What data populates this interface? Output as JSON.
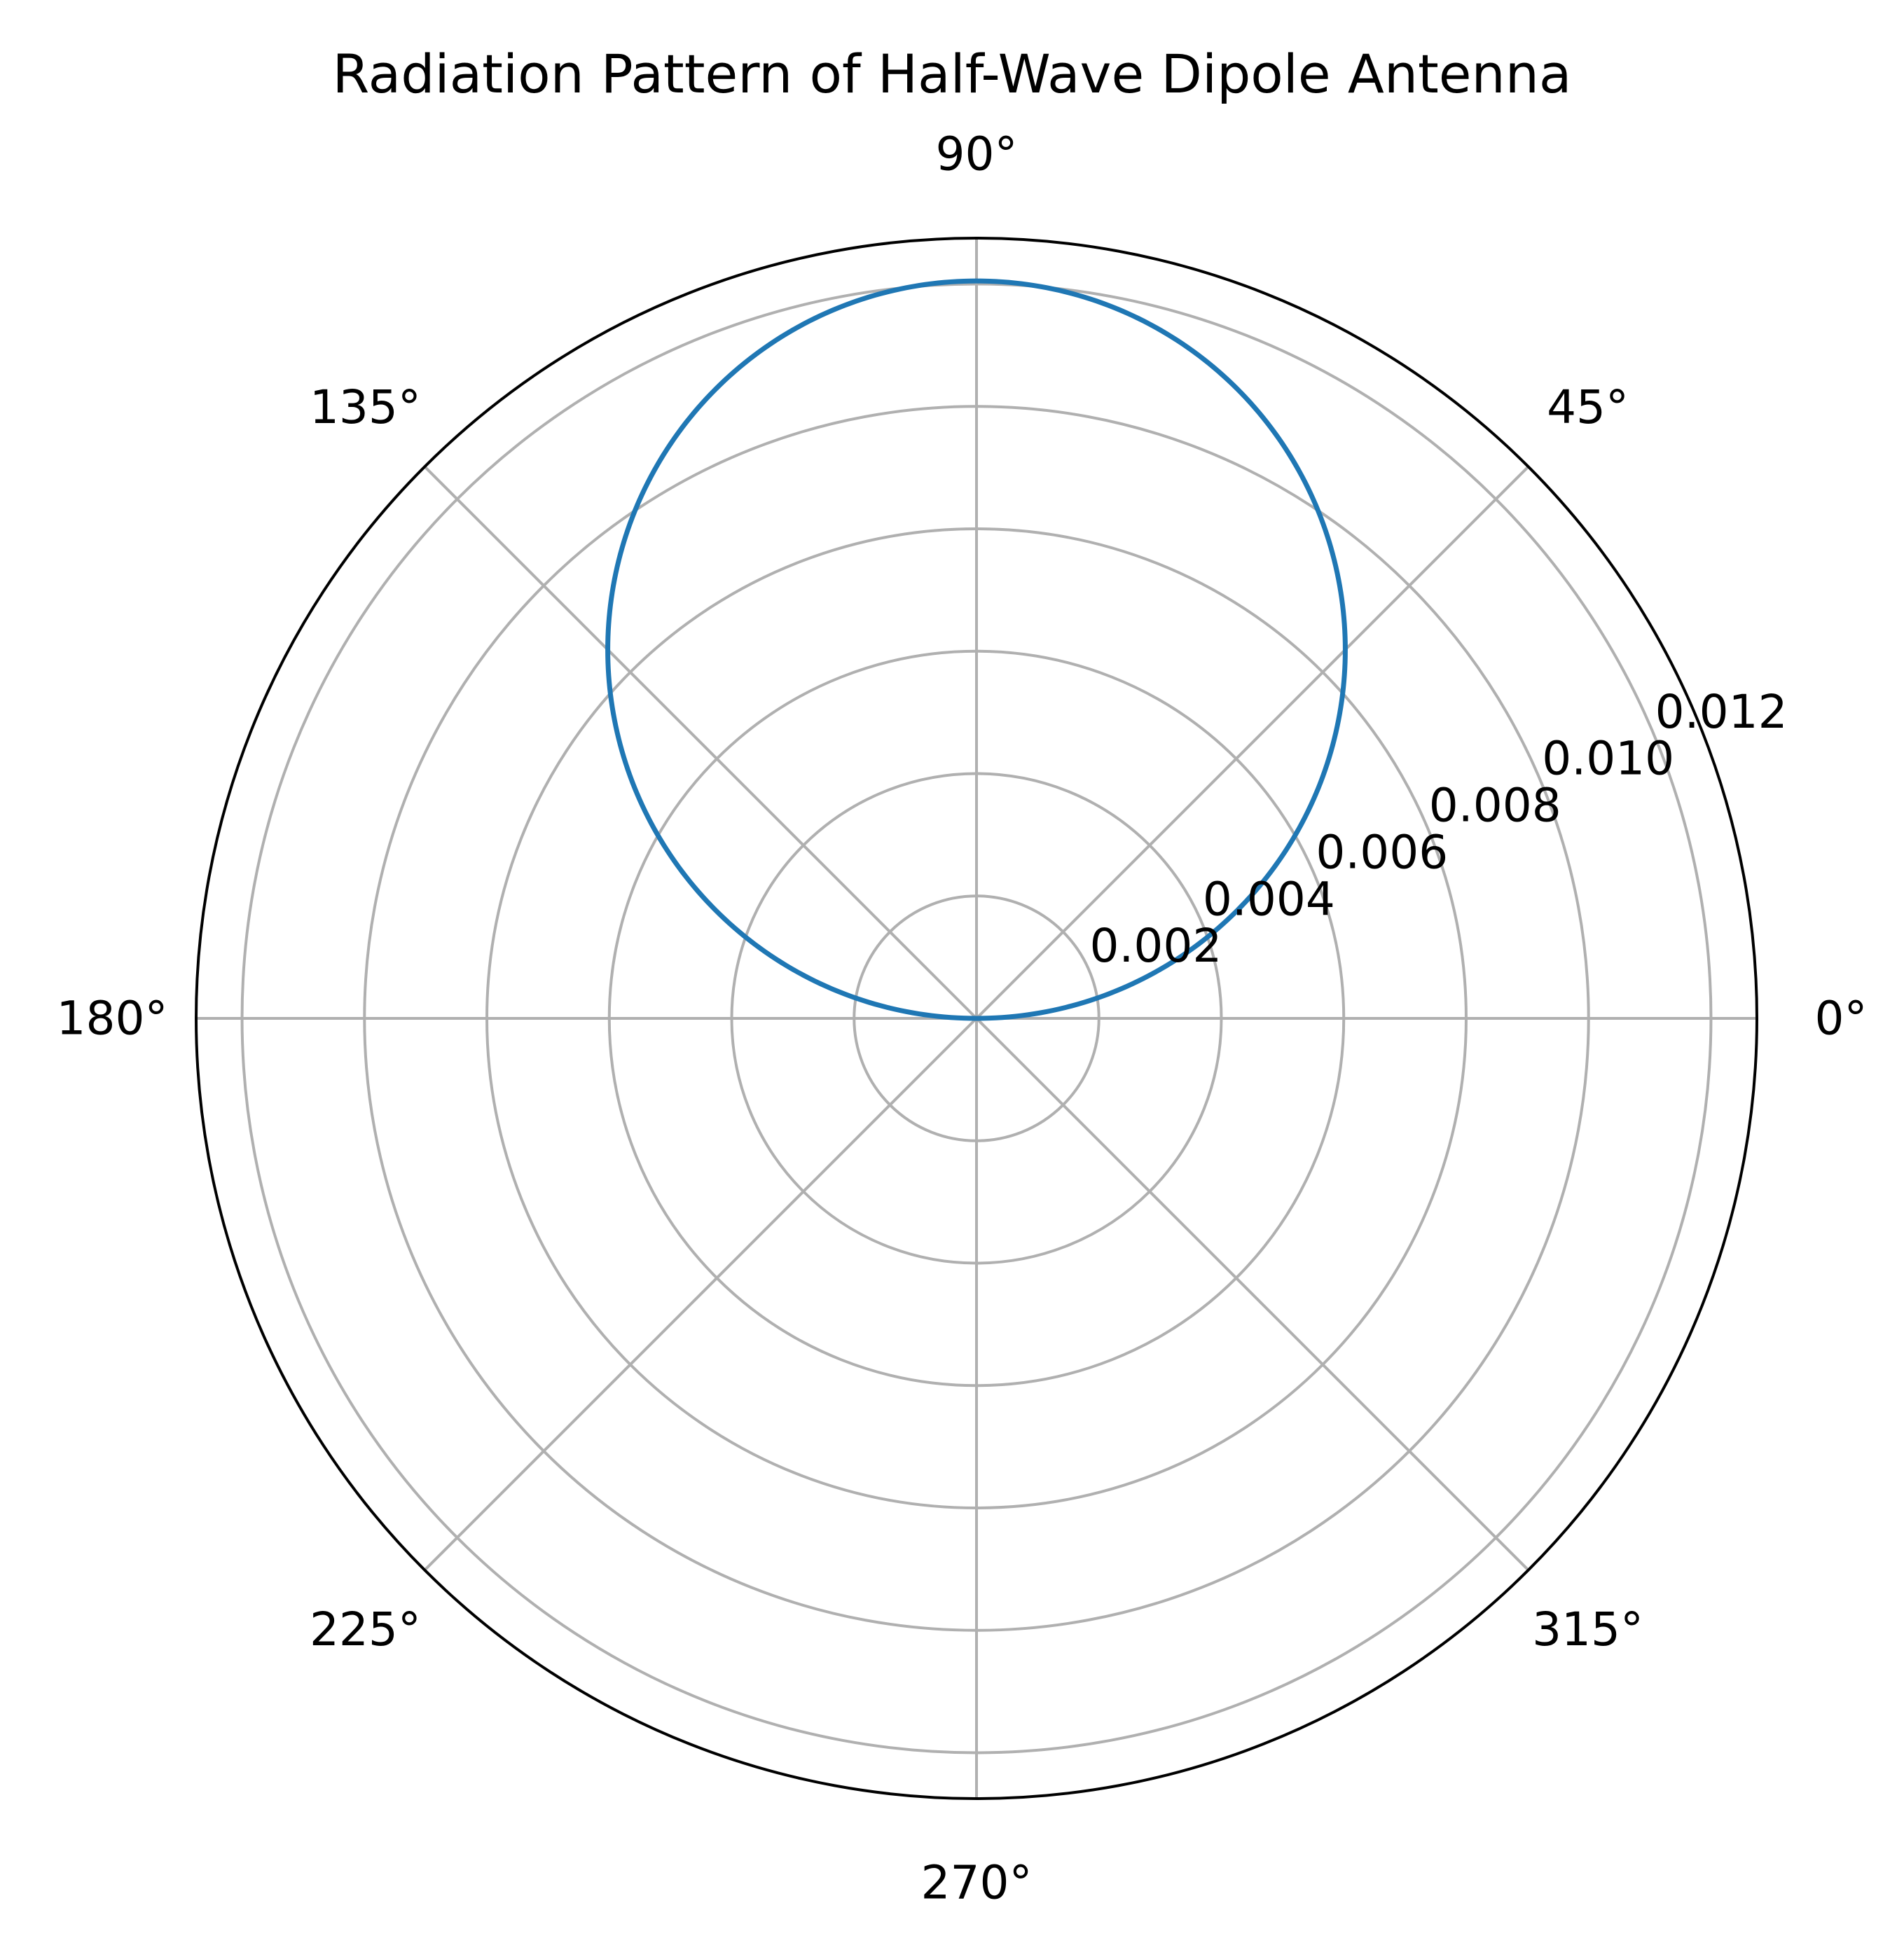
{
  "chart_data": {
    "type": "line",
    "projection": "polar",
    "title": "Radiation Pattern of Half-Wave Dipole Antenna",
    "theta_unit": "degrees",
    "theta_tick_labels": [
      "0°",
      "45°",
      "90°",
      "135°",
      "180°",
      "225°",
      "270°",
      "315°"
    ],
    "theta_ticks": [
      0,
      45,
      90,
      135,
      180,
      225,
      270,
      315
    ],
    "r_tick_labels": [
      "0.002",
      "0.004",
      "0.006",
      "0.008",
      "0.010",
      "0.012"
    ],
    "r_ticks": [
      0.002,
      0.004,
      0.006,
      0.008,
      0.01,
      0.012
    ],
    "rlim": [
      0,
      0.01275
    ],
    "r_label_angle": 22.5,
    "grid": true,
    "series": [
      {
        "color": "#1f77b4",
        "shape": "r = r_max * sin(theta), theta 0°–180°",
        "r_max": 0.01205,
        "theta": [
          0,
          10,
          20,
          30,
          40,
          45,
          50,
          60,
          70,
          80,
          90,
          100,
          110,
          120,
          130,
          135,
          140,
          150,
          160,
          170,
          180
        ],
        "r": [
          0.0,
          0.00209,
          0.00412,
          0.00603,
          0.00775,
          0.00852,
          0.00923,
          0.01044,
          0.01132,
          0.01187,
          0.01205,
          0.01187,
          0.01132,
          0.01044,
          0.00923,
          0.00852,
          0.00775,
          0.00603,
          0.00412,
          0.00209,
          0.0
        ]
      }
    ]
  },
  "colors": {
    "grid": "#b0b0b0",
    "spine": "#000000",
    "series": "#1f77b4"
  }
}
